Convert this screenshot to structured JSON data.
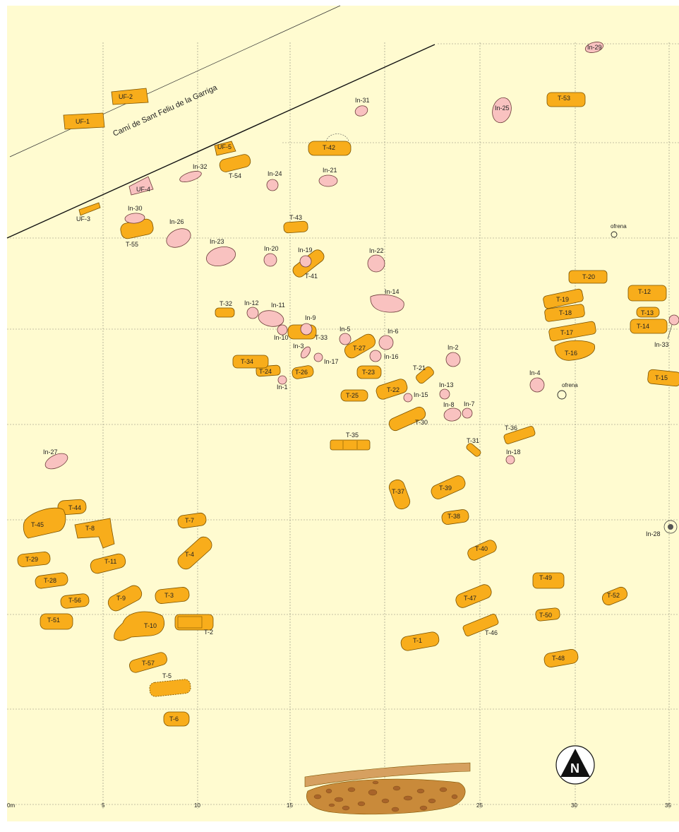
{
  "road_label": "Camí de Sant Feliu de la Garriga",
  "offerings": [
    "ofrena",
    "ofrena"
  ],
  "scale": {
    "ticks": [
      "0m",
      "5",
      "10",
      "15",
      "20",
      "25",
      "30",
      "35"
    ]
  },
  "north_label": "N",
  "colors": {
    "background": "#fffbd0",
    "tomb": "#f8ad1b",
    "inhumation": "#f9c2c0",
    "outline": "#7a5200"
  },
  "features": {
    "uf": [
      "UF-1",
      "UF-2",
      "UF-3",
      "UF-4",
      "UF-5"
    ],
    "tombs": [
      "T-1",
      "T-2",
      "T-3",
      "T-4",
      "T-5",
      "T-6",
      "T-7",
      "T-8",
      "T-9",
      "T-10",
      "T-11",
      "T-12",
      "T-13",
      "T-14",
      "T-15",
      "T-16",
      "T-17",
      "T-18",
      "T-19",
      "T-20",
      "T-21",
      "T-22",
      "T-23",
      "T-24",
      "T-25",
      "T-26",
      "T-27",
      "T-28",
      "T-29",
      "T-30",
      "T-31",
      "T-32",
      "T-33",
      "T-34",
      "T-35",
      "T-36",
      "T-37",
      "T-38",
      "T-39",
      "T-40",
      "T-41",
      "T-42",
      "T-43",
      "T-44",
      "T-45",
      "T-46",
      "T-47",
      "T-48",
      "T-49",
      "T-50",
      "T-51",
      "T-52",
      "T-53",
      "T-54",
      "T-55",
      "T-56",
      "T-57"
    ],
    "inhumations": [
      "In-1",
      "In-2",
      "In-3",
      "In-4",
      "In-5",
      "In-6",
      "In-7",
      "In-8",
      "In-9",
      "In-10",
      "In-11",
      "In-12",
      "In-13",
      "In-14",
      "In-15",
      "In-16",
      "In-17",
      "In-18",
      "In-19",
      "In-20",
      "In-21",
      "In-22",
      "In-23",
      "In-24",
      "In-25",
      "In-26",
      "In-27",
      "In-28",
      "In-29",
      "In-30",
      "In-31",
      "In-32",
      "In-33"
    ]
  }
}
